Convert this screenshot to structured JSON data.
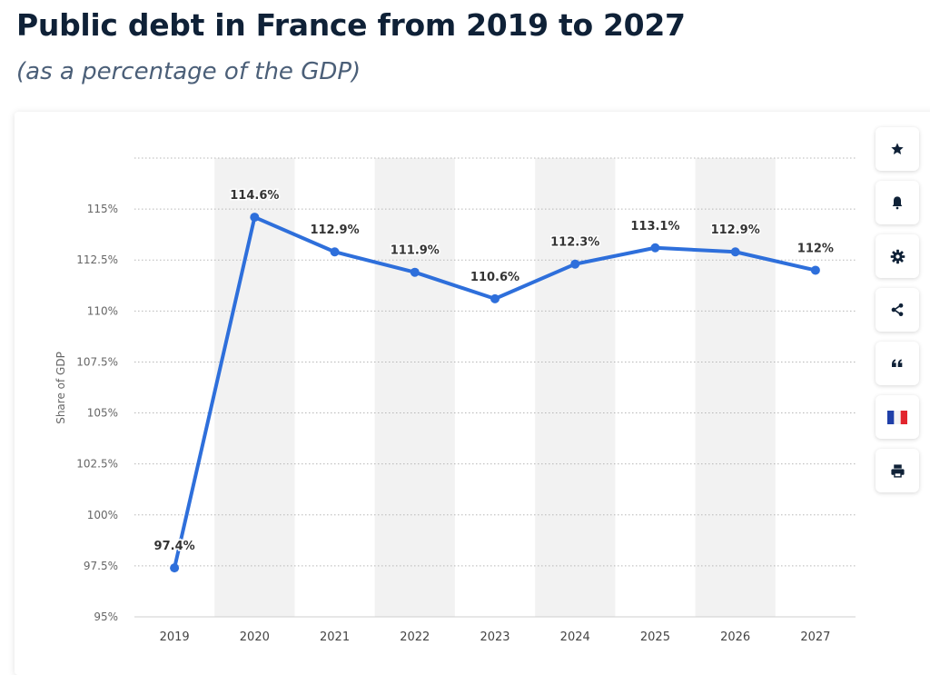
{
  "header": {
    "title": "Public debt in France from 2019 to 2027",
    "subtitle": "(as a percentage of the GDP)"
  },
  "toolbar": {
    "buttons": [
      {
        "icon": "star-icon",
        "name": "favorite-button"
      },
      {
        "icon": "bell-icon",
        "name": "notification-button"
      },
      {
        "icon": "gear-icon",
        "name": "settings-button"
      },
      {
        "icon": "share-icon",
        "name": "share-button"
      },
      {
        "icon": "quote-icon",
        "name": "cite-button"
      },
      {
        "icon": "flag-france-icon",
        "name": "country-button"
      },
      {
        "icon": "printer-icon",
        "name": "print-button"
      }
    ]
  },
  "colors": {
    "line": "#2e6fdb",
    "band": "#f2f2f2",
    "grid": "#b7b7b7",
    "tick_text": "#666666",
    "label_text": "#333333"
  },
  "chart_data": {
    "type": "line",
    "title": "",
    "xlabel": "",
    "ylabel": "Share of GDP",
    "ylim": [
      95,
      117.5
    ],
    "grid": true,
    "x": [
      "2019",
      "2020",
      "2021",
      "2022",
      "2023",
      "2024",
      "2025",
      "2026",
      "2027"
    ],
    "yticks": [
      95,
      97.5,
      100,
      102.5,
      105,
      107.5,
      110,
      112.5,
      115
    ],
    "ytick_labels": [
      "95%",
      "97.5%",
      "100%",
      "102.5%",
      "105%",
      "107.5%",
      "110%",
      "112.5%",
      "115%"
    ],
    "series": [
      {
        "values": [
          97.4,
          114.6,
          112.9,
          111.9,
          110.6,
          112.3,
          113.1,
          112.9,
          112.0
        ],
        "labels": [
          "97.4%",
          "114.6%",
          "112.9%",
          "111.9%",
          "110.6%",
          "112.3%",
          "113.1%",
          "112.9%",
          "112%"
        ]
      }
    ]
  }
}
